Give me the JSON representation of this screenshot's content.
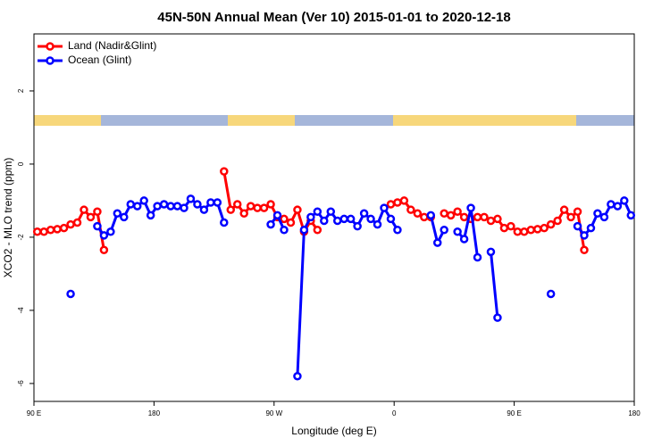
{
  "chart_data": {
    "type": "line",
    "title": "45N-50N Annual Mean (Ver 10)   2015-01-01 to 2020-12-18",
    "x_label": "Longitude (deg E)",
    "y_label": "XCO2 - MLO trend (ppm)",
    "legend": "top-left",
    "xlim": [
      90,
      540
    ],
    "ylim": [
      -6.49,
      3.56
    ],
    "xticks": [
      {
        "value": 90,
        "label": "90 E"
      },
      180,
      {
        "value": 270,
        "label": "90 W"
      },
      {
        "value": 360,
        "label": "0"
      },
      {
        "value": 450,
        "label": "90 E"
      },
      {
        "value": 540,
        "label": "180"
      }
    ],
    "yticks": [
      -6,
      -4,
      -2,
      0,
      2
    ],
    "x": [
      92.5,
      97.5,
      102.5,
      107.5,
      112.5,
      117.5,
      122.5,
      127.5,
      132.5,
      137.5,
      142.5,
      147.5,
      152.5,
      157.5,
      162.5,
      167.5,
      172.5,
      177.5,
      182.5,
      187.5,
      192.5,
      197.5,
      202.5,
      207.5,
      212.5,
      217.5,
      222.5,
      227.5,
      232.5,
      237.5,
      242.5,
      247.5,
      252.5,
      257.5,
      262.5,
      267.5,
      272.5,
      277.5,
      282.5,
      287.5,
      292.5,
      297.5,
      302.5,
      307.5,
      312.5,
      317.5,
      322.5,
      327.5,
      332.5,
      337.5,
      342.5,
      347.5,
      352.5,
      357.5,
      362.5,
      367.5,
      372.5,
      377.5,
      382.5,
      387.5,
      392.5,
      397.5,
      402.5,
      407.5,
      412.5,
      417.5,
      422.5,
      427.5,
      432.5,
      437.5,
      442.5,
      447.5,
      452.5,
      457.5,
      462.5,
      467.5,
      472.5,
      477.5,
      482.5,
      487.5,
      492.5,
      497.5,
      502.5,
      507.5,
      512.5,
      517.5,
      522.5,
      527.5,
      532.5,
      537.5
    ],
    "series": [
      {
        "name": "Land (Nadir&Glint)",
        "color": "#ff0000",
        "values": [
          -1.85,
          -1.85,
          -1.8,
          -1.78,
          -1.75,
          -1.65,
          -1.6,
          -1.25,
          -1.45,
          -1.3,
          -2.35,
          null,
          null,
          null,
          null,
          null,
          null,
          null,
          null,
          null,
          null,
          null,
          null,
          null,
          null,
          null,
          null,
          null,
          -0.2,
          -1.25,
          -1.1,
          -1.35,
          -1.15,
          -1.2,
          -1.2,
          -1.1,
          -1.45,
          -1.5,
          -1.6,
          -1.25,
          -1.85,
          -1.55,
          -1.8,
          null,
          null,
          null,
          null,
          null,
          null,
          null,
          null,
          null,
          null,
          -1.1,
          -1.05,
          -1.0,
          -1.25,
          -1.35,
          -1.45,
          -1.45,
          null,
          -1.35,
          -1.4,
          -1.3,
          -1.45,
          -1.5,
          -1.45,
          -1.45,
          -1.55,
          -1.5,
          -1.75,
          -1.7,
          -1.85,
          -1.85,
          -1.8,
          -1.78,
          -1.75,
          -1.65,
          -1.55,
          -1.25,
          -1.45,
          -1.3,
          -2.35,
          null,
          null,
          null,
          null,
          null,
          null,
          null
        ]
      },
      {
        "name": "Ocean (Glint)",
        "color": "#0000ff",
        "values": [
          null,
          null,
          null,
          null,
          null,
          -3.55,
          null,
          null,
          null,
          -1.7,
          -1.95,
          -1.85,
          -1.35,
          -1.45,
          -1.1,
          -1.15,
          -1.0,
          -1.4,
          -1.15,
          -1.1,
          -1.15,
          -1.15,
          -1.2,
          -0.95,
          -1.1,
          -1.25,
          -1.05,
          -1.05,
          -1.6,
          null,
          null,
          null,
          null,
          null,
          null,
          -1.65,
          -1.4,
          -1.8,
          null,
          -5.8,
          -1.8,
          -1.45,
          -1.3,
          -1.55,
          -1.3,
          -1.55,
          -1.5,
          -1.5,
          -1.7,
          -1.35,
          -1.5,
          -1.65,
          -1.2,
          -1.5,
          -1.8,
          null,
          null,
          null,
          null,
          -1.4,
          -2.15,
          -1.8,
          null,
          -1.85,
          -2.05,
          -1.2,
          -2.55,
          null,
          -2.4,
          -4.2,
          null,
          null,
          null,
          null,
          null,
          null,
          null,
          -3.55,
          null,
          null,
          null,
          -1.7,
          -1.95,
          -1.75,
          -1.35,
          -1.45,
          -1.1,
          -1.15,
          -1.0,
          -1.4
        ]
      }
    ]
  }
}
